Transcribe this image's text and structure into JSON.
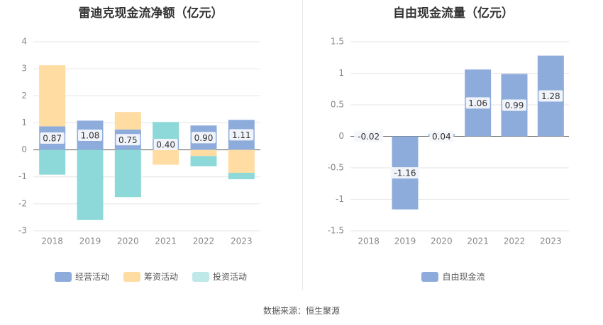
{
  "colors": {
    "operating": "#8eacdb",
    "financing": "#ffdca2",
    "investing": "#8dd8d8",
    "fcf": "#8eacdb",
    "label_bg": "#f5f7fb"
  },
  "source_text": "数据来源：恒生聚源",
  "chart_data": [
    {
      "type": "bar",
      "stacked": true,
      "title": "雷迪克现金流净额（亿元）",
      "categories": [
        "2018",
        "2019",
        "2020",
        "2021",
        "2022",
        "2023"
      ],
      "ylim": [
        -3,
        4
      ],
      "yticks": [
        4,
        3,
        2,
        1,
        0,
        -1,
        -2,
        -3
      ],
      "ytick_labels": [
        "4",
        "3",
        "2",
        "1",
        "0",
        "-1",
        "-2",
        "-3"
      ],
      "grid": true,
      "legend_position": "bottom",
      "series": [
        {
          "name": "经营活动",
          "values": [
            0.87,
            1.08,
            0.75,
            0.4,
            0.9,
            1.11
          ],
          "labels": [
            "0.87",
            "1.08",
            "0.75",
            "0.40",
            "0.90",
            "1.11"
          ]
        },
        {
          "name": "筹资活动",
          "values": [
            2.26,
            0.0,
            0.65,
            -0.55,
            -0.23,
            -0.85
          ]
        },
        {
          "name": "投资活动",
          "values": [
            -0.92,
            -2.6,
            -1.75,
            0.63,
            -0.38,
            -0.24
          ]
        }
      ]
    },
    {
      "type": "bar",
      "title": "自由现金流量（亿元）",
      "categories": [
        "2018",
        "2019",
        "2020",
        "2021",
        "2022",
        "2023"
      ],
      "ylim": [
        -1.5,
        1.5
      ],
      "yticks": [
        1.5,
        1,
        0.5,
        0,
        -0.5,
        -1,
        -1.5
      ],
      "ytick_labels": [
        "1.5",
        "1",
        "0.5",
        "0",
        "-0.5",
        "-1",
        "-1.5"
      ],
      "grid": true,
      "legend_position": "bottom",
      "series": [
        {
          "name": "自由现金流",
          "values": [
            -0.02,
            -1.16,
            0.04,
            1.06,
            0.99,
            1.28
          ],
          "labels": [
            "-0.02",
            "-1.16",
            "0.04",
            "1.06",
            "0.99",
            "1.28"
          ]
        }
      ]
    }
  ]
}
